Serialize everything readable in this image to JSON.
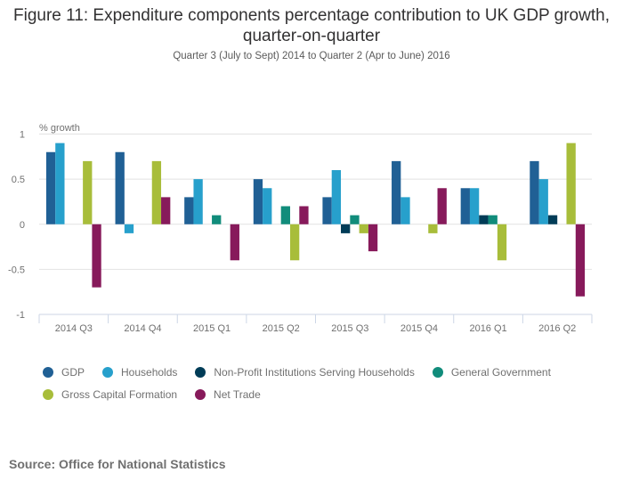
{
  "chart_data": {
    "type": "bar",
    "title": "Figure 11: Expenditure components percentage contribution to UK GDP growth, quarter-on-quarter",
    "subtitle": "Quarter 3 (July to Sept) 2014 to Quarter 2 (Apr to June) 2016",
    "ylabel": "% growth",
    "xlabel": "",
    "ylim": [
      -1,
      1
    ],
    "yticks": [
      "1",
      "0.5",
      "0",
      "-0.5",
      "-1"
    ],
    "ytick_values": [
      1,
      0.5,
      0,
      -0.5,
      -1
    ],
    "grid": true,
    "legend_position": "bottom",
    "categories": [
      "2014 Q3",
      "2014 Q4",
      "2015 Q1",
      "2015 Q2",
      "2015 Q3",
      "2015 Q4",
      "2016 Q1",
      "2016 Q2"
    ],
    "series": [
      {
        "name": "GDP",
        "color": "#206095",
        "values": [
          0.8,
          0.8,
          0.3,
          0.5,
          0.3,
          0.7,
          0.4,
          0.7
        ]
      },
      {
        "name": "Households",
        "color": "#27a0cc",
        "values": [
          0.9,
          -0.1,
          0.5,
          0.4,
          0.6,
          0.3,
          0.4,
          0.5
        ]
      },
      {
        "name": "Non-Profit Institutions Serving Households",
        "color": "#003c57",
        "values": [
          0,
          0,
          0,
          0,
          -0.1,
          0,
          0.1,
          0.1
        ]
      },
      {
        "name": "General Government",
        "color": "#118c7b",
        "values": [
          0,
          0,
          0.1,
          0.2,
          0.1,
          0,
          0.1,
          0
        ]
      },
      {
        "name": "Gross Capital Formation",
        "color": "#a8bd3a",
        "values": [
          0.7,
          0.7,
          0,
          -0.4,
          -0.1,
          -0.1,
          -0.4,
          0.9
        ]
      },
      {
        "name": "Net Trade",
        "color": "#871a5b",
        "values": [
          -0.7,
          0.3,
          -0.4,
          0.2,
          -0.3,
          0.4,
          0,
          -0.8
        ]
      }
    ]
  },
  "source": "Source: Office for National Statistics"
}
